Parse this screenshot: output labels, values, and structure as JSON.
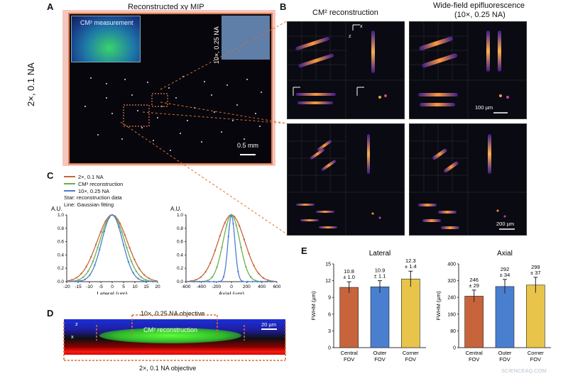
{
  "panels": {
    "A": {
      "letter": "A",
      "title": "Reconstructed xy MIP",
      "side_label": "2×, 0.1 NA",
      "inset_label": "CM² measurement",
      "corner_label": "10×, 0.25 NA",
      "scalebar": "0.5 mm",
      "colors": {
        "frame": "#e07a4f",
        "bg": "#f4c6bd"
      }
    },
    "B": {
      "letter": "B",
      "col1_title": "CM² reconstruction",
      "col2_title_1": "Wide-field epifluorescence",
      "col2_title_2": "(10×, 0.25 NA)",
      "scale_top": "100 µm",
      "scale_bottom": "200 µm",
      "axes": {
        "x": "x",
        "y": "y",
        "z": "z"
      }
    },
    "C": {
      "letter": "C",
      "legend": [
        "2×, 0.1 NA",
        "CM² reconstruction",
        "10×, 0.25 NA"
      ],
      "legend_notes": [
        "Star: reconstruction data",
        "Line: Gaussian fitting"
      ],
      "colors": {
        "c2x": "#c8643c",
        "cm2": "#6ab04c",
        "c10x": "#4a7fd0"
      }
    },
    "D": {
      "letter": "D",
      "top_label": "10×, 0.25 NA objective",
      "band_label": "CM² reconstruction",
      "bottom_label": "2×, 0.1 NA objective",
      "scale": "20 µm",
      "axes": {
        "x": "x",
        "z": "z"
      }
    },
    "E": {
      "letter": "E"
    }
  },
  "chart_data": [
    {
      "type": "line",
      "xlabel": "Lateral (µm)",
      "ylabel": "A.U.",
      "xlim": [
        -20,
        20
      ],
      "ylim": [
        0,
        1.0
      ],
      "xticks": [
        -20,
        -15,
        -10,
        -5,
        0,
        5,
        10,
        15,
        20
      ],
      "yticks": [
        0,
        0.2,
        0.4,
        0.6,
        0.8,
        1.0
      ],
      "series": [
        {
          "name": "2×, 0.1 NA",
          "sigma": 6.6
        },
        {
          "name": "CM² reconstruction",
          "sigma": 5.5
        },
        {
          "name": "10×, 0.25 NA",
          "sigma": 4.6
        }
      ]
    },
    {
      "type": "line",
      "xlabel": "Axial (µm)",
      "ylabel": "A.U.",
      "xlim": [
        -600,
        600
      ],
      "ylim": [
        0,
        1.0
      ],
      "xticks": [
        -600,
        -400,
        -200,
        0,
        200,
        400,
        600
      ],
      "yticks": [
        0,
        0.2,
        0.4,
        0.6,
        0.8,
        1.0
      ],
      "series": [
        {
          "name": "2×, 0.1 NA",
          "sigma": 175
        },
        {
          "name": "CM² reconstruction",
          "sigma": 110
        },
        {
          "name": "10×, 0.25 NA",
          "sigma": 45
        }
      ]
    },
    {
      "type": "bar",
      "title": "Lateral",
      "ylabel": "FWHM (µm)",
      "ylim": [
        0,
        15
      ],
      "yticks": [
        0,
        3,
        6,
        9,
        12,
        15
      ],
      "categories": [
        "Central FOV",
        "Outer FOV",
        "Corner FOV"
      ],
      "values": [
        10.8,
        10.9,
        12.3
      ],
      "errors": [
        1.0,
        1.1,
        1.4
      ],
      "labels": [
        "10.8 ± 1.0",
        "10.9 ± 1.1",
        "12.3 ± 1.4"
      ]
    },
    {
      "type": "bar",
      "title": "Axial",
      "ylabel": "FWHM (µm)",
      "ylim": [
        0,
        400
      ],
      "yticks": [
        0,
        80,
        160,
        240,
        320,
        400
      ],
      "categories": [
        "Central FOV",
        "Outer FOV",
        "Corner FOV"
      ],
      "values": [
        246,
        292,
        299
      ],
      "errors": [
        29,
        34,
        37
      ],
      "labels": [
        "246 ± 29",
        "292 ± 34",
        "299 ± 37"
      ]
    }
  ],
  "watermark": "SCIENCEAQ.COM"
}
